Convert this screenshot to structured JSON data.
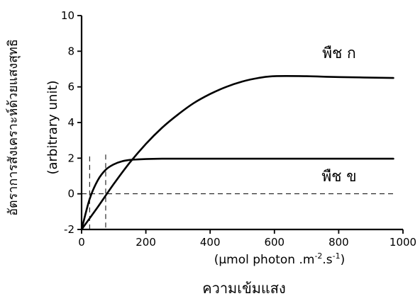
{
  "chart_data": {
    "type": "line",
    "title": "",
    "xlabel_lines": [
      "(μmol photon .m",
      "-2",
      ".s",
      "-1",
      ")"
    ],
    "xlabel_bottom": "ความเข้มแสง",
    "ylabel_lines": [
      "อัตราการสังเคราะห์ด้วยแสงสุทธิ",
      "(arbitrary unit)"
    ],
    "xlim": [
      0,
      1000
    ],
    "ylim": [
      -2,
      10
    ],
    "xticks": [
      0,
      200,
      400,
      600,
      800,
      1000
    ],
    "yticks": [
      -2,
      0,
      2,
      4,
      6,
      8,
      10
    ],
    "grid": false,
    "series": [
      {
        "name": "พืช ก",
        "x": [
          0,
          50,
          100,
          150,
          200,
          250,
          300,
          350,
          400,
          450,
          500,
          550,
          600,
          700,
          800,
          970
        ],
        "y": [
          -2,
          -0.75,
          0.55,
          1.75,
          2.8,
          3.7,
          4.45,
          5.1,
          5.6,
          6.0,
          6.3,
          6.5,
          6.6,
          6.6,
          6.55,
          6.5
        ]
      },
      {
        "name": "พืช ข",
        "x": [
          0,
          25,
          50,
          75,
          100,
          125,
          150,
          175,
          200,
          250,
          300,
          600,
          970
        ],
        "y": [
          -2,
          -0.3,
          0.75,
          1.35,
          1.65,
          1.82,
          1.9,
          1.93,
          1.95,
          1.97,
          1.97,
          1.97,
          1.97
        ]
      }
    ],
    "reference_lines": [
      {
        "axis": "y",
        "value": 0,
        "style": "dashed"
      },
      {
        "axis": "x",
        "value": 25,
        "y_top": 2.1,
        "style": "dashed"
      },
      {
        "axis": "x",
        "value": 75,
        "y_top": 2.2,
        "style": "dashed"
      }
    ]
  }
}
